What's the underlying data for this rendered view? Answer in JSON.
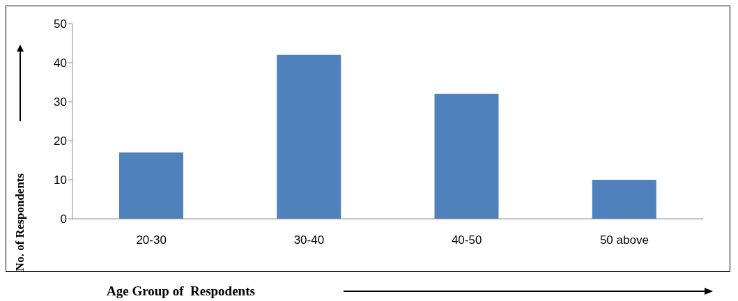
{
  "chart_data": {
    "type": "bar",
    "xlabel": "Age Group of  Respodents",
    "ylabel": "No. of Respondents",
    "categories": [
      "20-30",
      "30-40",
      "40-50",
      "50 above"
    ],
    "values": [
      17,
      42,
      32,
      10
    ],
    "color": "#4f81bd",
    "ylim": [
      0,
      50
    ],
    "yticks": [
      0,
      10,
      20,
      30,
      40,
      50
    ]
  }
}
